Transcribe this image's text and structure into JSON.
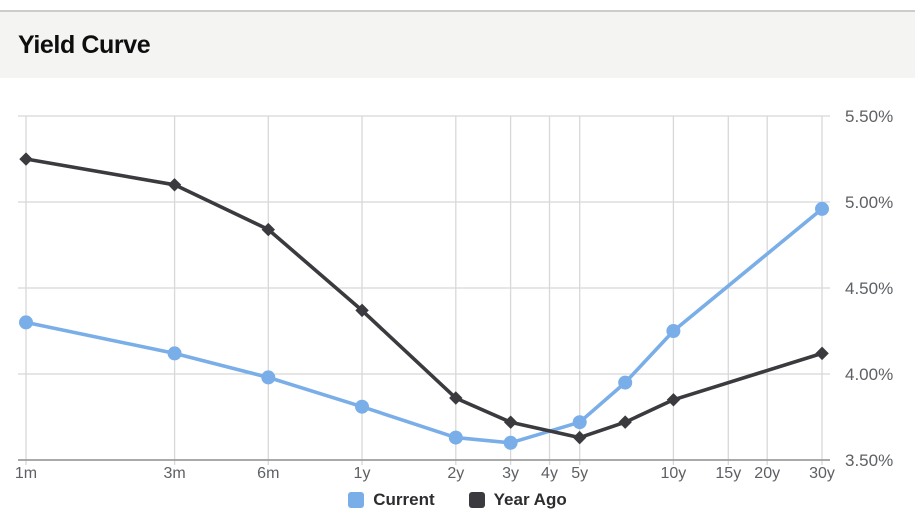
{
  "header": {
    "title": "Yield Curve"
  },
  "chart_data": {
    "type": "line",
    "title": "Yield Curve",
    "x_scale": "log",
    "x_unit": "months",
    "x_range_months": [
      1,
      360
    ],
    "ylim": [
      3.5,
      5.5
    ],
    "grid": true,
    "legend_position": "bottom",
    "colors": {
      "current": "#7aaee8",
      "year_ago": "#3b3b3f",
      "grid": "#d8d8d8",
      "axis": "#9e9e9e",
      "tick_label": "#5d6064"
    },
    "x_ticks": [
      {
        "label": "1m",
        "months": 1
      },
      {
        "label": "3m",
        "months": 3
      },
      {
        "label": "6m",
        "months": 6
      },
      {
        "label": "1y",
        "months": 12
      },
      {
        "label": "2y",
        "months": 24
      },
      {
        "label": "3y",
        "months": 36
      },
      {
        "label": "4y",
        "months": 48
      },
      {
        "label": "5y",
        "months": 60
      },
      {
        "label": "10y",
        "months": 120
      },
      {
        "label": "15y",
        "months": 180
      },
      {
        "label": "20y",
        "months": 240
      },
      {
        "label": "30y",
        "months": 360
      }
    ],
    "y_ticks": [
      {
        "label": "5.50%",
        "value": 5.5
      },
      {
        "label": "5.00%",
        "value": 5.0
      },
      {
        "label": "4.50%",
        "value": 4.5
      },
      {
        "label": "4.00%",
        "value": 4.0
      },
      {
        "label": "3.50%",
        "value": 3.5
      }
    ],
    "series": [
      {
        "name": "Current",
        "color": "#7aaee8",
        "marker": "circle",
        "points": [
          {
            "maturity": "1m",
            "months": 1,
            "yield_pct": 4.3
          },
          {
            "maturity": "3m",
            "months": 3,
            "yield_pct": 4.12
          },
          {
            "maturity": "6m",
            "months": 6,
            "yield_pct": 3.98
          },
          {
            "maturity": "1y",
            "months": 12,
            "yield_pct": 3.81
          },
          {
            "maturity": "2y",
            "months": 24,
            "yield_pct": 3.63
          },
          {
            "maturity": "3y",
            "months": 36,
            "yield_pct": 3.6
          },
          {
            "maturity": "5y",
            "months": 60,
            "yield_pct": 3.72
          },
          {
            "maturity": "7y",
            "months": 84,
            "yield_pct": 3.95
          },
          {
            "maturity": "10y",
            "months": 120,
            "yield_pct": 4.25
          },
          {
            "maturity": "30y",
            "months": 360,
            "yield_pct": 4.96
          }
        ]
      },
      {
        "name": "Year Ago",
        "color": "#3b3b3f",
        "marker": "diamond",
        "points": [
          {
            "maturity": "1m",
            "months": 1,
            "yield_pct": 5.25
          },
          {
            "maturity": "3m",
            "months": 3,
            "yield_pct": 5.1
          },
          {
            "maturity": "6m",
            "months": 6,
            "yield_pct": 4.84
          },
          {
            "maturity": "1y",
            "months": 12,
            "yield_pct": 4.37
          },
          {
            "maturity": "2y",
            "months": 24,
            "yield_pct": 3.86
          },
          {
            "maturity": "3y",
            "months": 36,
            "yield_pct": 3.72
          },
          {
            "maturity": "5y",
            "months": 60,
            "yield_pct": 3.63
          },
          {
            "maturity": "7y",
            "months": 84,
            "yield_pct": 3.72
          },
          {
            "maturity": "10y",
            "months": 120,
            "yield_pct": 3.85
          },
          {
            "maturity": "30y",
            "months": 360,
            "yield_pct": 4.12
          }
        ]
      }
    ]
  }
}
